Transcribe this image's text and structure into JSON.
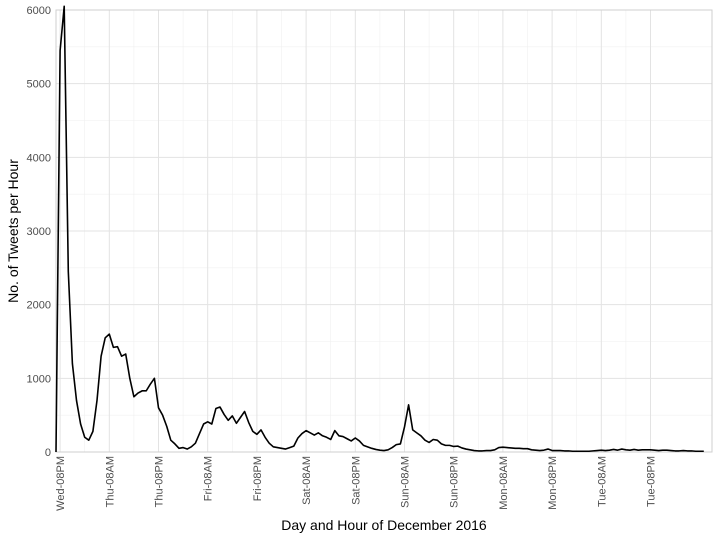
{
  "chart_data": {
    "type": "line",
    "title": "",
    "xlabel": "Day and Hour of December 2016",
    "ylabel": "No. of Tweets per Hour",
    "ylim": [
      0,
      6000
    ],
    "xlim": [
      0,
      160
    ],
    "grid": true,
    "x_ticks": [
      {
        "label": "Wed-08PM",
        "x": 1
      },
      {
        "label": "Thu-08AM",
        "x": 13
      },
      {
        "label": "Thu-08PM",
        "x": 25
      },
      {
        "label": "Fri-08AM",
        "x": 37
      },
      {
        "label": "Fri-08PM",
        "x": 49
      },
      {
        "label": "Sat-08AM",
        "x": 61
      },
      {
        "label": "Sat-08PM",
        "x": 73
      },
      {
        "label": "Sun-08AM",
        "x": 85
      },
      {
        "label": "Sun-08PM",
        "x": 97
      },
      {
        "label": "Mon-08AM",
        "x": 109
      },
      {
        "label": "Mon-08PM",
        "x": 121
      },
      {
        "label": "Tue-08AM",
        "x": 133
      },
      {
        "label": "Tue-08PM",
        "x": 145
      }
    ],
    "y_ticks": [
      0,
      1000,
      2000,
      3000,
      4000,
      5000,
      6000
    ],
    "series": [
      {
        "color": "#000000",
        "values": [
          0,
          5450,
          6050,
          2450,
          1200,
          700,
          380,
          200,
          160,
          280,
          700,
          1300,
          1550,
          1600,
          1420,
          1430,
          1300,
          1330,
          1000,
          750,
          800,
          830,
          830,
          920,
          1000,
          600,
          500,
          350,
          160,
          110,
          50,
          60,
          40,
          70,
          120,
          250,
          380,
          410,
          380,
          590,
          610,
          510,
          430,
          490,
          390,
          470,
          550,
          400,
          280,
          240,
          300,
          200,
          120,
          70,
          60,
          50,
          40,
          60,
          80,
          190,
          250,
          290,
          260,
          230,
          260,
          220,
          200,
          170,
          290,
          220,
          210,
          180,
          150,
          190,
          150,
          90,
          70,
          50,
          35,
          25,
          20,
          30,
          60,
          100,
          110,
          340,
          640,
          300,
          260,
          220,
          160,
          130,
          170,
          160,
          110,
          90,
          90,
          75,
          80,
          55,
          40,
          30,
          20,
          15,
          15,
          20,
          20,
          30,
          60,
          65,
          60,
          55,
          50,
          50,
          45,
          45,
          30,
          25,
          20,
          25,
          40,
          20,
          20,
          20,
          15,
          15,
          10,
          10,
          10,
          10,
          10,
          15,
          20,
          25,
          20,
          25,
          35,
          25,
          40,
          30,
          25,
          35,
          25,
          30,
          30,
          30,
          25,
          20,
          25,
          25,
          20,
          15,
          15,
          20,
          15,
          15,
          10,
          10,
          10
        ]
      }
    ]
  }
}
